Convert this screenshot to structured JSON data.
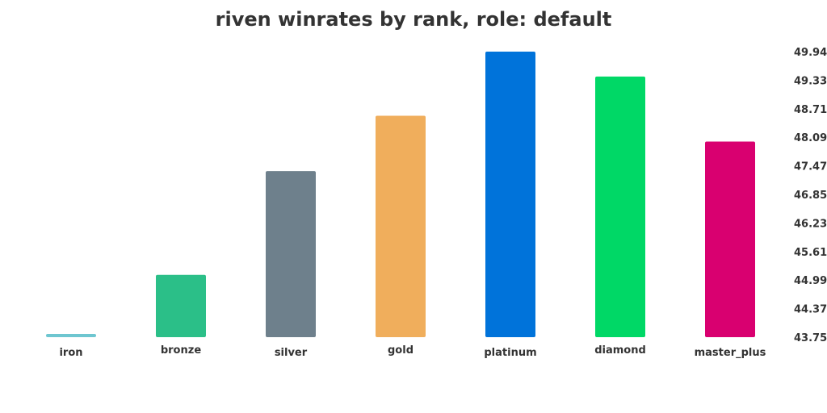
{
  "chart_data": {
    "type": "bar",
    "title": "riven winrates by rank, role: default",
    "xlabel": "",
    "ylabel": "",
    "categories": [
      "iron",
      "bronze",
      "silver",
      "gold",
      "platinum",
      "diamond",
      "master_plus"
    ],
    "values": [
      43.75,
      45.1,
      47.35,
      48.55,
      49.94,
      49.4,
      47.99
    ],
    "colors": [
      "#6ec6d0",
      "#2bbf88",
      "#6e808c",
      "#f0ae5c",
      "#0073da",
      "#00d866",
      "#d90070"
    ],
    "y_ticks": [
      "49.94",
      "49.33",
      "48.71",
      "48.09",
      "47.47",
      "46.85",
      "46.23",
      "45.61",
      "44.99",
      "44.37",
      "43.75"
    ],
    "ylim": [
      43.75,
      49.94
    ],
    "y_axis_side": "right",
    "grid": false,
    "legend": "none"
  }
}
